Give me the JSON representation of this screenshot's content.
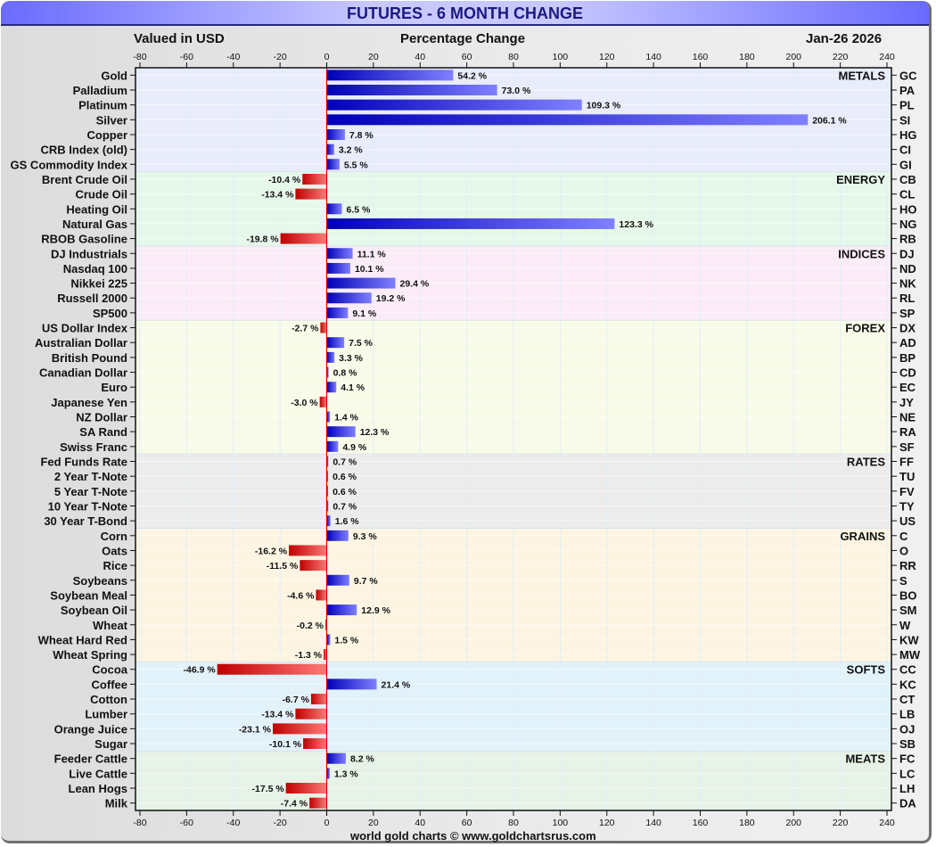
{
  "header": {
    "title": "FUTURES - 6 MONTH CHANGE",
    "left_label": "Valued in USD",
    "center_label": "Percentage Change",
    "date": "Jan-26  2026"
  },
  "footer": {
    "credit": "world gold charts © www.goldchartsrus.com"
  },
  "colors": {
    "positive_dark": "#0000b8",
    "positive_light": "#8080ff",
    "negative_dark": "#c00000",
    "negative_light": "#ff7878",
    "zero_line": "#e00000"
  },
  "chart_data": {
    "type": "bar",
    "orientation": "horizontal",
    "title": "FUTURES - 6 MONTH CHANGE",
    "xlabel": "Percentage Change",
    "ylabel": "",
    "xlim": [
      -80,
      240
    ],
    "x_ticks": [
      -80,
      -60,
      -40,
      -20,
      0,
      20,
      40,
      60,
      80,
      100,
      120,
      140,
      160,
      180,
      200,
      220,
      240
    ],
    "grid": true,
    "value_suffix": " %",
    "groups": [
      {
        "name": "METALS",
        "color": "#e8ecfb",
        "items": [
          {
            "label": "Gold",
            "symbol": "GC",
            "value": 54.2
          },
          {
            "label": "Palladium",
            "symbol": "PA",
            "value": 73.0
          },
          {
            "label": "Platinum",
            "symbol": "PL",
            "value": 109.3
          },
          {
            "label": "Silver",
            "symbol": "SI",
            "value": 206.1
          },
          {
            "label": "Copper",
            "symbol": "HG",
            "value": 7.8
          },
          {
            "label": "CRB Index (old)",
            "symbol": "CI",
            "value": 3.2
          },
          {
            "label": "GS Commodity Index",
            "symbol": "GI",
            "value": 5.5
          }
        ]
      },
      {
        "name": "ENERGY",
        "color": "#e6f8ea",
        "items": [
          {
            "label": "Brent Crude Oil",
            "symbol": "CB",
            "value": -10.4
          },
          {
            "label": "Crude Oil",
            "symbol": "CL",
            "value": -13.4
          },
          {
            "label": "Heating Oil",
            "symbol": "HO",
            "value": 6.5
          },
          {
            "label": "Natural Gas",
            "symbol": "NG",
            "value": 123.3
          },
          {
            "label": "RBOB Gasoline",
            "symbol": "RB",
            "value": -19.8
          }
        ]
      },
      {
        "name": "INDICES",
        "color": "#fcecf8",
        "items": [
          {
            "label": "DJ Industrials",
            "symbol": "DJ",
            "value": 11.1
          },
          {
            "label": "Nasdaq 100",
            "symbol": "ND",
            "value": 10.1
          },
          {
            "label": "Nikkei 225",
            "symbol": "NK",
            "value": 29.4
          },
          {
            "label": "Russell 2000",
            "symbol": "RL",
            "value": 19.2
          },
          {
            "label": "SP500",
            "symbol": "SP",
            "value": 9.1
          }
        ]
      },
      {
        "name": "FOREX",
        "color": "#f8fbe8",
        "items": [
          {
            "label": "US Dollar Index",
            "symbol": "DX",
            "value": -2.7
          },
          {
            "label": "Australian Dollar",
            "symbol": "AD",
            "value": 7.5
          },
          {
            "label": "British Pound",
            "symbol": "BP",
            "value": 3.3
          },
          {
            "label": "Canadian Dollar",
            "symbol": "CD",
            "value": 0.8
          },
          {
            "label": "Euro",
            "symbol": "EC",
            "value": 4.1
          },
          {
            "label": "Japanese Yen",
            "symbol": "JY",
            "value": -3.0
          },
          {
            "label": "NZ Dollar",
            "symbol": "NE",
            "value": 1.4
          },
          {
            "label": "SA Rand",
            "symbol": "RA",
            "value": 12.3
          },
          {
            "label": "Swiss Franc",
            "symbol": "SF",
            "value": 4.9
          }
        ]
      },
      {
        "name": "RATES",
        "color": "#ececec",
        "items": [
          {
            "label": "Fed Funds Rate",
            "symbol": "FF",
            "value": 0.7
          },
          {
            "label": "2 Year T-Note",
            "symbol": "TU",
            "value": 0.6
          },
          {
            "label": "5 Year T-Note",
            "symbol": "FV",
            "value": 0.6
          },
          {
            "label": "10 Year T-Note",
            "symbol": "TY",
            "value": 0.7
          },
          {
            "label": "30 Year T-Bond",
            "symbol": "US",
            "value": 1.6
          }
        ]
      },
      {
        "name": "GRAINS",
        "color": "#fdf5e2",
        "items": [
          {
            "label": "Corn",
            "symbol": "C",
            "value": 9.3
          },
          {
            "label": "Oats",
            "symbol": "O",
            "value": -16.2
          },
          {
            "label": "Rice",
            "symbol": "RR",
            "value": -11.5
          },
          {
            "label": "Soybeans",
            "symbol": "S",
            "value": 9.7
          },
          {
            "label": "Soybean Meal",
            "symbol": "BO",
            "value": -4.6
          },
          {
            "label": "Soybean Oil",
            "symbol": "SM",
            "value": 12.9
          },
          {
            "label": "Wheat",
            "symbol": "W",
            "value": -0.2
          },
          {
            "label": "Wheat Hard Red",
            "symbol": "KW",
            "value": 1.5
          },
          {
            "label": "Wheat Spring",
            "symbol": "MW",
            "value": -1.3
          }
        ]
      },
      {
        "name": "SOFTS",
        "color": "#e2f2fb",
        "items": [
          {
            "label": "Cocoa",
            "symbol": "CC",
            "value": -46.9
          },
          {
            "label": "Coffee",
            "symbol": "KC",
            "value": 21.4
          },
          {
            "label": "Cotton",
            "symbol": "CT",
            "value": -6.7
          },
          {
            "label": "Lumber",
            "symbol": "LB",
            "value": -13.4
          },
          {
            "label": "Orange Juice",
            "symbol": "OJ",
            "value": -23.1
          },
          {
            "label": "Sugar",
            "symbol": "SB",
            "value": -10.1
          }
        ]
      },
      {
        "name": "MEATS",
        "color": "#e6f3e6",
        "items": [
          {
            "label": "Feeder Cattle",
            "symbol": "FC",
            "value": 8.2
          },
          {
            "label": "Live Cattle",
            "symbol": "LC",
            "value": 1.3
          },
          {
            "label": "Lean Hogs",
            "symbol": "LH",
            "value": -17.5
          },
          {
            "label": "Milk",
            "symbol": "DA",
            "value": -7.4
          }
        ]
      }
    ]
  }
}
